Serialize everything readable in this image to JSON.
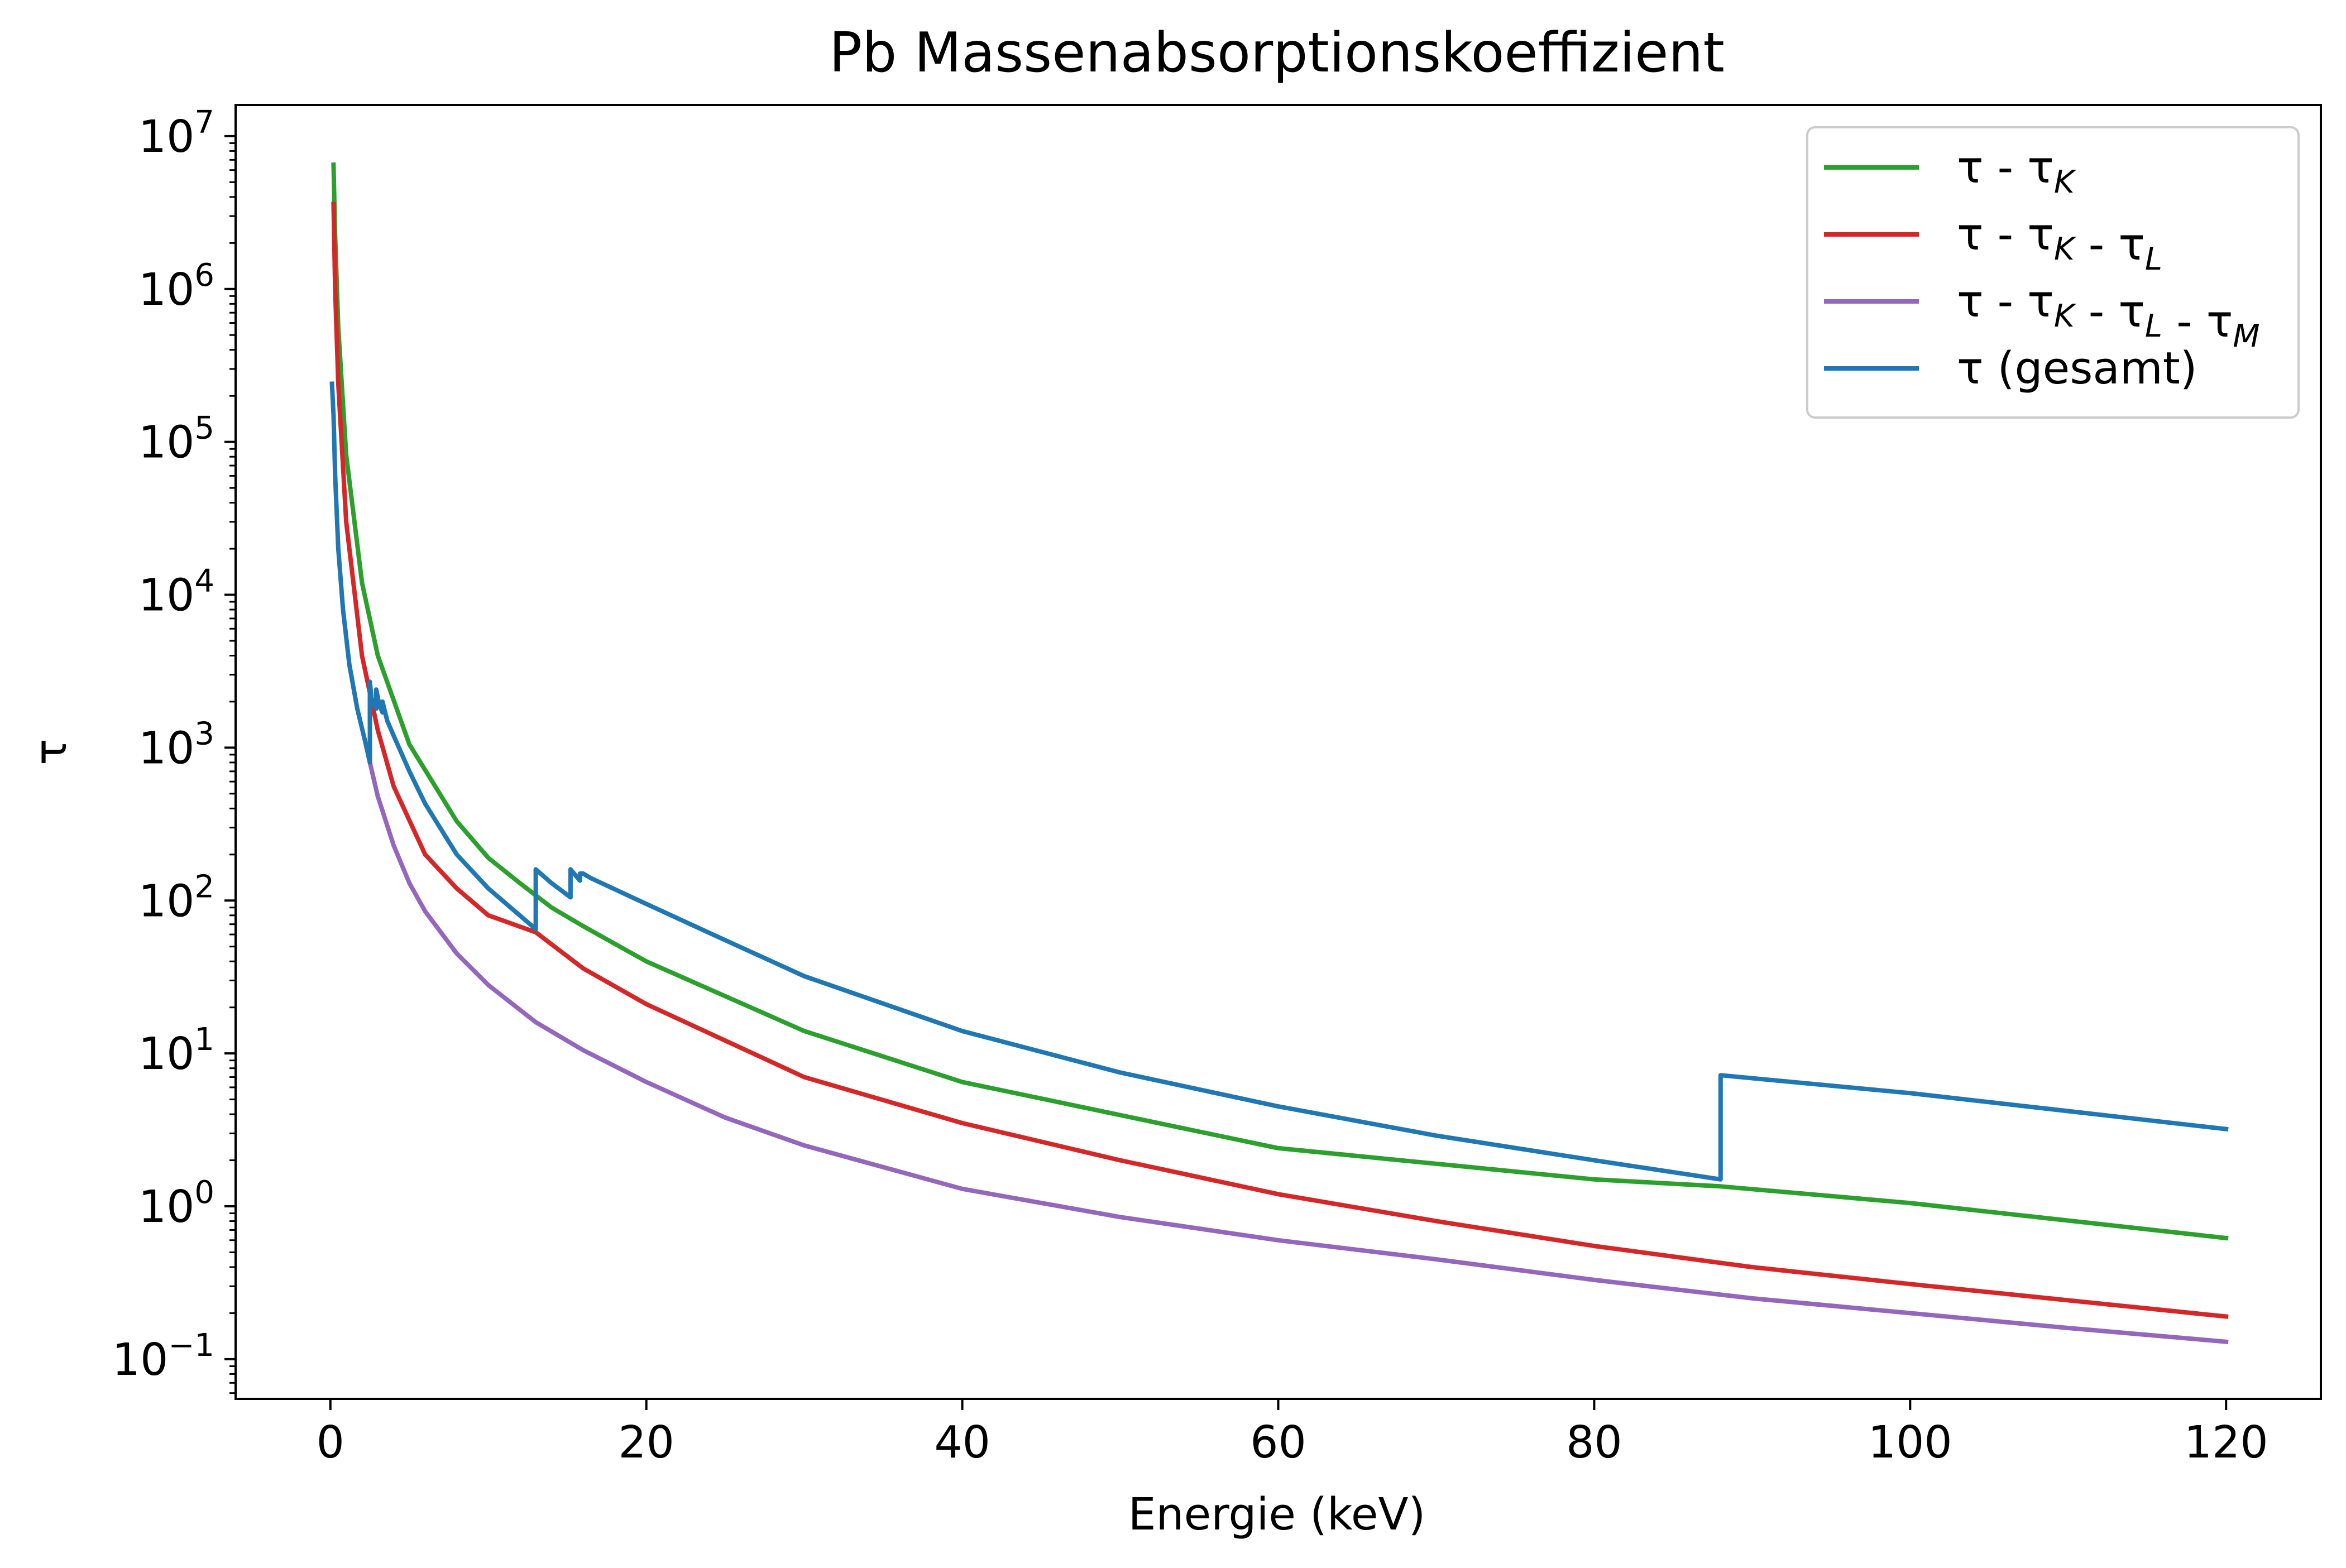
{
  "chart_data": {
    "type": "line",
    "title": "Pb Massenabsorptionskoeffizient",
    "xlabel": "Energie (keV)",
    "ylabel": "τ",
    "xlim": [
      -6,
      126
    ],
    "ylim": [
      0.055,
      16000000
    ],
    "y_scale": "log",
    "grid": false,
    "legend_position": "top-right",
    "x_ticks": [
      0,
      20,
      40,
      60,
      80,
      100,
      120
    ],
    "x_tick_labels": [
      "0",
      "20",
      "40",
      "60",
      "80",
      "100",
      "120"
    ],
    "y_ticks": [
      0.1,
      1,
      10,
      100,
      1000,
      10000,
      100000,
      1000000,
      10000000
    ],
    "y_tick_labels": [
      {
        "base": "10",
        "exp": "−1"
      },
      {
        "base": "10",
        "exp": "0"
      },
      {
        "base": "10",
        "exp": "1"
      },
      {
        "base": "10",
        "exp": "2"
      },
      {
        "base": "10",
        "exp": "3"
      },
      {
        "base": "10",
        "exp": "4"
      },
      {
        "base": "10",
        "exp": "5"
      },
      {
        "base": "10",
        "exp": "6"
      },
      {
        "base": "10",
        "exp": "7"
      }
    ],
    "series": [
      {
        "name": "τ - τK",
        "legend_parts": [
          {
            "t": "τ - τ"
          },
          {
            "t": "K",
            "sub": true
          }
        ],
        "color": "#2ca02c",
        "x": [
          0.2,
          0.3,
          0.5,
          1,
          2,
          3,
          5,
          8,
          10,
          12,
          14,
          16,
          20,
          30,
          40,
          60,
          80,
          88,
          100,
          120
        ],
        "y": [
          6500000,
          2200000,
          560000,
          82000,
          12000,
          4000,
          1050,
          330,
          190,
          130,
          90,
          68,
          40,
          14,
          6.5,
          2.4,
          1.5,
          1.35,
          1.05,
          0.62
        ]
      },
      {
        "name": "τ - τK - τL",
        "legend_parts": [
          {
            "t": "τ - τ"
          },
          {
            "t": "K",
            "sub": true
          },
          {
            "t": " - τ"
          },
          {
            "t": "L",
            "sub": true
          }
        ],
        "color": "#d62728",
        "x": [
          0.2,
          0.3,
          0.5,
          1,
          2,
          3,
          4,
          6,
          8,
          10,
          13,
          16,
          20,
          30,
          40,
          50,
          60,
          70,
          80,
          90,
          100,
          120
        ],
        "y": [
          3600000,
          1000000,
          240000,
          30000,
          4000,
          1300,
          560,
          200,
          120,
          80,
          62,
          36,
          21,
          7,
          3.5,
          2.0,
          1.2,
          0.8,
          0.55,
          0.4,
          0.31,
          0.19
        ]
      },
      {
        "name": "τ - τK - τL - τM",
        "legend_parts": [
          {
            "t": "τ - τ"
          },
          {
            "t": "K",
            "sub": true
          },
          {
            "t": " - τ"
          },
          {
            "t": "L",
            "sub": true
          },
          {
            "t": " - τ"
          },
          {
            "t": "M",
            "sub": true
          }
        ],
        "color": "#9467bd",
        "x": [
          2.5,
          3,
          4,
          5,
          6,
          8,
          10,
          13,
          16,
          20,
          25,
          30,
          40,
          50,
          60,
          70,
          80,
          90,
          100,
          110,
          120
        ],
        "y": [
          800,
          480,
          230,
          130,
          85,
          45,
          28,
          16,
          10.5,
          6.5,
          3.8,
          2.5,
          1.3,
          0.85,
          0.6,
          0.45,
          0.33,
          0.25,
          0.2,
          0.16,
          0.13
        ]
      },
      {
        "name": "τ (gesamt)",
        "legend_parts": [
          {
            "t": "τ (gesamt)"
          }
        ],
        "color": "#1f77b4",
        "x": [
          0.1,
          0.2,
          0.3,
          0.5,
          0.8,
          1.2,
          1.7,
          2.2,
          2.5,
          2.5,
          2.6,
          2.9,
          2.9,
          3.1,
          3.3,
          3.3,
          3.6,
          4,
          5,
          6,
          8,
          10,
          13,
          13,
          14,
          15.2,
          15.2,
          15.8,
          15.8,
          16,
          16.5,
          20,
          25,
          30,
          40,
          50,
          60,
          70,
          80,
          88,
          88,
          100,
          120
        ],
        "y": [
          240000,
          150000,
          60000,
          20000,
          8000,
          3500,
          1800,
          1100,
          800,
          2700,
          2100,
          1800,
          2400,
          1900,
          1700,
          2000,
          1500,
          1200,
          700,
          430,
          200,
          120,
          65,
          160,
          130,
          105,
          160,
          135,
          150,
          150,
          140,
          95,
          55,
          32,
          14,
          7.5,
          4.5,
          2.9,
          2.0,
          1.5,
          7.2,
          5.5,
          3.2
        ]
      }
    ]
  }
}
